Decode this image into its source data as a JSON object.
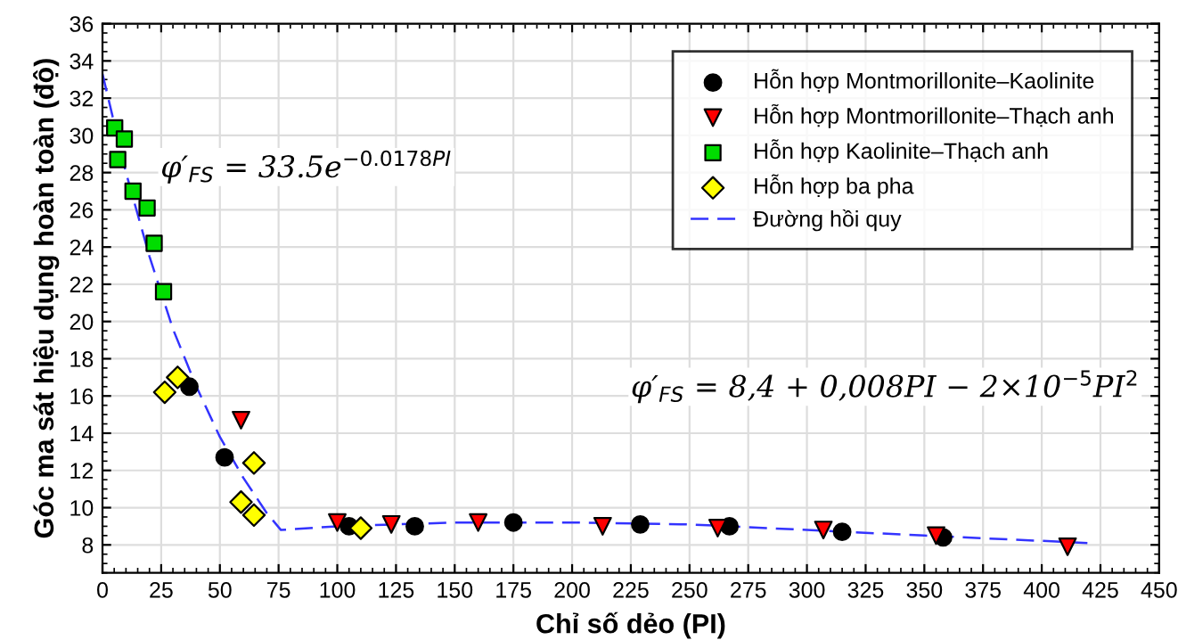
{
  "chart_data": {
    "type": "scatter",
    "xlabel": "Chỉ số dẻo (PI)",
    "ylabel": "Góc ma sát hiệu dụng hoàn toàn (độ)",
    "xlim": [
      0,
      450
    ],
    "xticks": [
      0,
      25,
      50,
      75,
      100,
      125,
      150,
      175,
      200,
      225,
      250,
      275,
      300,
      325,
      350,
      375,
      400,
      425,
      450
    ],
    "ylim": [
      6.5,
      36
    ],
    "yticks": [
      8,
      10,
      12,
      14,
      16,
      18,
      20,
      22,
      24,
      26,
      28,
      30,
      32,
      34,
      36
    ],
    "grid": true,
    "legend": "top right",
    "series": [
      {
        "name": "Hỗn hợp Montmorillonite–Kaolinite",
        "color": "#000000",
        "marker": "circle",
        "x": [
          37,
          52,
          105,
          133,
          175,
          229,
          267,
          315,
          358
        ],
        "values": [
          16.5,
          12.7,
          9.0,
          9.0,
          9.2,
          9.1,
          9.0,
          8.7,
          8.4
        ]
      },
      {
        "name": "Hỗn hợp Montmorillonite–Thạch anh",
        "color": "#ff0000",
        "marker": "triangle",
        "x": [
          59,
          100,
          123,
          160,
          213,
          262,
          307,
          355,
          411
        ],
        "values": [
          14.7,
          9.2,
          9.1,
          9.2,
          9.0,
          8.9,
          8.8,
          8.5,
          7.9
        ]
      },
      {
        "name": "Hỗn hợp Kaolinite–Thạch anh",
        "color": "#00dd00",
        "marker": "square",
        "x": [
          5.2,
          6.5,
          9.3,
          13,
          19,
          22,
          26
        ],
        "values": [
          30.4,
          28.7,
          29.8,
          27.0,
          26.1,
          24.2,
          21.6
        ]
      },
      {
        "name": "Hỗn hợp ba pha",
        "color": "#ffff00",
        "marker": "diamond",
        "x": [
          26.5,
          32,
          59,
          64.5,
          64.5,
          110
        ],
        "values": [
          16.2,
          17.0,
          10.3,
          12.4,
          9.6,
          8.9
        ]
      },
      {
        "name": "Đường hồi quy",
        "type": "line",
        "line_style": "dashed",
        "color": "#3333ff",
        "x": [
          0,
          10,
          20,
          30,
          40,
          50,
          60,
          70,
          76,
          100,
          150,
          200,
          250,
          300,
          350,
          420
        ],
        "values": [
          33.3,
          28.0,
          23.5,
          19.6,
          16.5,
          13.8,
          11.6,
          9.7,
          8.8,
          9.0,
          9.2,
          9.2,
          9.1,
          8.8,
          8.5,
          8.1
        ]
      }
    ],
    "annotations": [
      "φ′$_{FS}$ = 33.5e$^{−0.0178PI}$",
      "φ′$_{FS}$ = 8,4 + 0,008PI − 2×10$^{−5}$PI$^{2}$"
    ]
  }
}
